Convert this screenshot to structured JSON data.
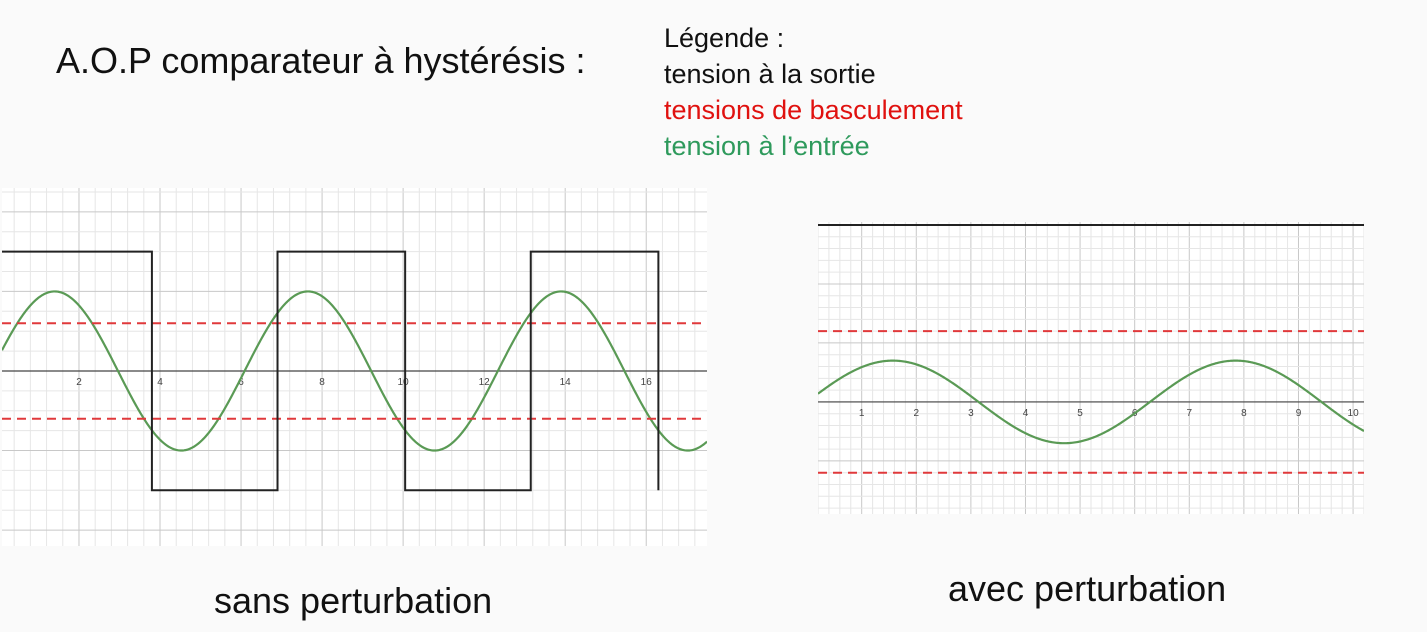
{
  "title": "A.O.P comparateur à hystérésis :",
  "legend": {
    "heading": "Légende :",
    "items": [
      {
        "label": "tension à la sortie",
        "color": "#111111"
      },
      {
        "label": "tensions de basculement",
        "color": "#e0110f"
      },
      {
        "label": "tension à l’entrée",
        "color": "#2e9a5c"
      }
    ]
  },
  "captions": {
    "left": "sans perturbation",
    "right": "avec perturbation"
  },
  "colors": {
    "output": "#222222",
    "threshold": "#e0393b",
    "input": "#5a9a55",
    "grid_minor": "#e6e6e6",
    "grid_major": "#c8c8c8",
    "axis": "#444444"
  },
  "chart_data": [
    {
      "type": "line",
      "title": "",
      "xlabel": "",
      "ylabel": "",
      "xlim": [
        0.1,
        17.5
      ],
      "ylim": [
        -2.2,
        2.3
      ],
      "xticks": [
        2,
        4,
        6,
        8,
        10,
        12,
        14,
        16
      ],
      "grid": true,
      "series": [
        {
          "role": "input",
          "kind": "sine",
          "amplitude": 1.0,
          "period": 6.25,
          "phase_peak_x": 1.4,
          "x_end": 17.5
        },
        {
          "role": "threshold",
          "kind": "hline",
          "y": 0.6,
          "dashed": true
        },
        {
          "role": "threshold",
          "kind": "hline",
          "y": -0.6,
          "dashed": true
        },
        {
          "role": "output",
          "kind": "step",
          "x": [
            0.1,
            3.8,
            3.8,
            6.9,
            6.9,
            10.05,
            10.05,
            13.15,
            13.15,
            16.3,
            16.3
          ],
          "y": [
            1.5,
            1.5,
            -1.5,
            -1.5,
            1.5,
            1.5,
            -1.5,
            -1.5,
            1.5,
            1.5,
            -1.5
          ]
        }
      ]
    },
    {
      "type": "line",
      "title": "",
      "xlabel": "",
      "ylabel": "",
      "xlim": [
        0.2,
        10.2
      ],
      "ylim": [
        -1.9,
        3.05
      ],
      "xticks": [
        1,
        2,
        3,
        4,
        5,
        6,
        7,
        8,
        9,
        10
      ],
      "grid": true,
      "series": [
        {
          "role": "input",
          "kind": "sine",
          "amplitude": 0.7,
          "period": 6.28,
          "phase_peak_x": 1.57,
          "x_end": 10.2
        },
        {
          "role": "threshold",
          "kind": "hline",
          "y": 1.2,
          "dashed": true
        },
        {
          "role": "threshold",
          "kind": "hline",
          "y": -1.2,
          "dashed": true
        },
        {
          "role": "output",
          "kind": "hline",
          "y": 3.0,
          "dashed": false
        }
      ]
    }
  ]
}
